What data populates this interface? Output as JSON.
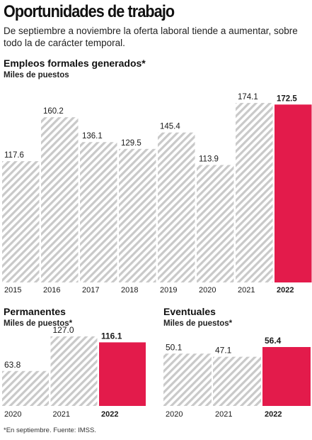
{
  "header": {
    "title": "Oportunidades de trabajo",
    "subtitle": "De septiembre a noviembre la oferta laboral tiende a aumentar, sobre todo la de carácter temporal."
  },
  "footnote": "*En septiembre. Fuente: IMSS.",
  "colors": {
    "hatch_stripe": "#c9c9c9",
    "highlight": "#e31b4b",
    "text": "#1a1a1a"
  },
  "chart_data": [
    {
      "type": "bar",
      "title": "Empleos formales generados*",
      "ylabel": "Miles de puestos",
      "categories": [
        "2015",
        "2016",
        "2017",
        "2018",
        "2019",
        "2020",
        "2021",
        "2022"
      ],
      "values": [
        117.6,
        160.2,
        136.1,
        129.5,
        145.4,
        113.9,
        174.1,
        172.5
      ],
      "labels": [
        "117.6",
        "160.2",
        "136.1",
        "129.5",
        "145.4",
        "113.9",
        "174.1",
        "172.5"
      ],
      "highlight": "2022",
      "ylim": [
        0,
        174.1
      ]
    },
    {
      "type": "bar",
      "title": "Permanentes",
      "ylabel": "Miles de puestos*",
      "categories": [
        "2020",
        "2021",
        "2022"
      ],
      "values": [
        63.8,
        127.0,
        116.1
      ],
      "labels": [
        "63.8",
        "127.0",
        "116.1"
      ],
      "highlight": "2022",
      "ylim": [
        0,
        127.0
      ]
    },
    {
      "type": "bar",
      "title": "Eventuales",
      "ylabel": "Miles de puestos*",
      "categories": [
        "2020",
        "2021",
        "2022"
      ],
      "values": [
        50.1,
        47.1,
        56.4
      ],
      "labels": [
        "50.1",
        "47.1",
        "56.4"
      ],
      "highlight": "2022",
      "ylim": [
        0,
        56.4
      ]
    }
  ]
}
